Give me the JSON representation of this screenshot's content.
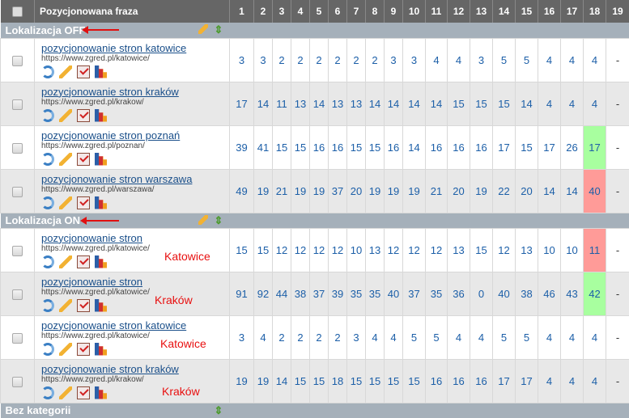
{
  "header": {
    "phrase_label": "Pozycjonowana fraza",
    "columns": [
      "1",
      "2",
      "3",
      "4",
      "5",
      "6",
      "7",
      "8",
      "9",
      "10",
      "11",
      "12",
      "13",
      "14",
      "15",
      "16",
      "17",
      "18",
      "19"
    ]
  },
  "groups": [
    {
      "title": "Lokalizacja OFF",
      "has_edit": true,
      "rows": [
        {
          "phrase": "pozycjonowanie stron katowice",
          "url": "https://www.zgred.pl/katowice/",
          "note": "",
          "positions": [
            "3",
            "3",
            "2",
            "2",
            "2",
            "2",
            "2",
            "2",
            "3",
            "3",
            "4",
            "4",
            "3",
            "5",
            "5",
            "4",
            "4",
            "4",
            "-"
          ],
          "highlight18": ""
        },
        {
          "phrase": "pozycjonowanie stron kraków",
          "url": "https://www.zgred.pl/krakow/",
          "note": "",
          "positions": [
            "17",
            "14",
            "11",
            "13",
            "14",
            "13",
            "13",
            "14",
            "14",
            "14",
            "14",
            "15",
            "15",
            "15",
            "14",
            "4",
            "4",
            "4",
            "-"
          ],
          "highlight18": ""
        },
        {
          "phrase": "pozycjonowanie stron poznań",
          "url": "https://www.zgred.pl/poznan/",
          "note": "",
          "positions": [
            "39",
            "41",
            "15",
            "15",
            "16",
            "16",
            "15",
            "15",
            "16",
            "14",
            "16",
            "16",
            "16",
            "17",
            "15",
            "17",
            "26",
            "17",
            "-"
          ],
          "highlight18": "green"
        },
        {
          "phrase": "pozycjonowanie stron warszawa",
          "url": "https://www.zgred.pl/warszawa/",
          "note": "",
          "positions": [
            "49",
            "19",
            "21",
            "19",
            "19",
            "37",
            "20",
            "19",
            "19",
            "19",
            "21",
            "20",
            "19",
            "22",
            "20",
            "14",
            "14",
            "40",
            "-"
          ],
          "highlight18": "red"
        }
      ]
    },
    {
      "title": "Lokalizacja ON",
      "has_edit": true,
      "rows": [
        {
          "phrase": "pozycjonowanie stron",
          "url": "https://www.zgred.pl/katowice/",
          "note": "Katowice",
          "positions": [
            "15",
            "15",
            "12",
            "12",
            "12",
            "12",
            "10",
            "13",
            "12",
            "12",
            "12",
            "13",
            "15",
            "12",
            "13",
            "10",
            "10",
            "11",
            "-"
          ],
          "highlight18": "red"
        },
        {
          "phrase": "pozycjonowanie stron",
          "url": "https://www.zgred.pl/katowice/",
          "note": "Kraków",
          "positions": [
            "91",
            "92",
            "44",
            "38",
            "37",
            "39",
            "35",
            "35",
            "40",
            "37",
            "35",
            "36",
            "0",
            "40",
            "38",
            "46",
            "43",
            "42",
            "-"
          ],
          "highlight18": "green"
        },
        {
          "phrase": "pozycjonowanie stron katowice",
          "url": "https://www.zgred.pl/katowice/",
          "note": "Katowice",
          "positions": [
            "3",
            "4",
            "2",
            "2",
            "2",
            "2",
            "3",
            "4",
            "4",
            "5",
            "5",
            "4",
            "4",
            "5",
            "5",
            "4",
            "4",
            "4",
            "-"
          ],
          "highlight18": ""
        },
        {
          "phrase": "pozycjonowanie stron kraków",
          "url": "https://www.zgred.pl/krakow/",
          "note": "Kraków",
          "positions": [
            "19",
            "19",
            "14",
            "15",
            "15",
            "18",
            "15",
            "15",
            "15",
            "15",
            "16",
            "16",
            "16",
            "17",
            "17",
            "4",
            "4",
            "4",
            "-"
          ],
          "highlight18": ""
        }
      ]
    },
    {
      "title": "Bez kategorii",
      "has_edit": false,
      "rows": []
    }
  ],
  "colors": {
    "highlight_green": "#a8ff9f",
    "highlight_red": "#ff9b98",
    "annotation": "#e81010"
  }
}
